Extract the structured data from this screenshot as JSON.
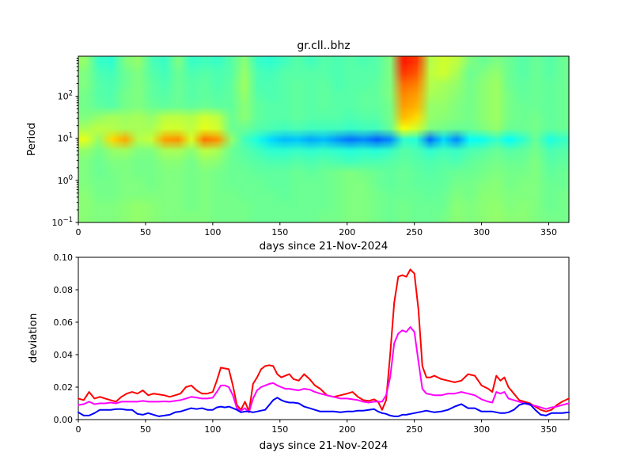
{
  "figure": {
    "title": "gr.cll..bhz",
    "background": "#ffffff"
  },
  "chart_data": [
    {
      "type": "heatmap",
      "name": "spectrogram",
      "title": "gr.cll..bhz",
      "xlabel": "days since 21-Nov-2024",
      "ylabel": "Period",
      "x_range": [
        0,
        365
      ],
      "xticks": [
        0,
        50,
        100,
        150,
        200,
        250,
        300,
        350
      ],
      "y_scale": "log",
      "y_range": [
        0.1,
        891
      ],
      "ytick_exponents": [
        -1,
        0,
        1,
        2
      ],
      "colormap": "jet",
      "value_range": [
        0,
        1
      ],
      "x_day_centers": [
        0,
        10,
        20,
        30,
        40,
        50,
        60,
        70,
        80,
        90,
        100,
        110,
        120,
        130,
        140,
        150,
        160,
        170,
        180,
        190,
        200,
        210,
        220,
        230,
        240,
        250,
        260,
        270,
        280,
        290,
        300,
        310,
        320,
        330,
        340,
        350,
        360
      ],
      "period_log10_centers": [
        -1.0,
        -0.73,
        -0.46,
        -0.19,
        0.08,
        0.35,
        0.62,
        0.89,
        1.16,
        1.43,
        1.7,
        1.97,
        2.24,
        2.51,
        2.78
      ],
      "values_rows_bottom_to_top": [
        [
          0.51,
          0.5,
          0.5,
          0.51,
          0.52,
          0.51,
          0.5,
          0.5,
          0.5,
          0.5,
          0.49,
          0.49,
          0.49,
          0.48,
          0.48,
          0.48,
          0.48,
          0.48,
          0.49,
          0.49,
          0.5,
          0.5,
          0.49,
          0.48,
          0.49,
          0.48,
          0.48,
          0.49,
          0.51,
          0.5,
          0.51,
          0.52,
          0.51,
          0.51,
          0.5,
          0.49,
          0.49
        ],
        [
          0.51,
          0.5,
          0.5,
          0.51,
          0.52,
          0.51,
          0.5,
          0.5,
          0.49,
          0.5,
          0.49,
          0.49,
          0.49,
          0.48,
          0.48,
          0.48,
          0.48,
          0.48,
          0.48,
          0.49,
          0.5,
          0.5,
          0.49,
          0.48,
          0.49,
          0.48,
          0.48,
          0.48,
          0.51,
          0.5,
          0.51,
          0.52,
          0.5,
          0.51,
          0.5,
          0.48,
          0.49
        ],
        [
          0.51,
          0.49,
          0.49,
          0.5,
          0.5,
          0.5,
          0.5,
          0.5,
          0.49,
          0.5,
          0.49,
          0.49,
          0.48,
          0.48,
          0.48,
          0.47,
          0.48,
          0.48,
          0.48,
          0.49,
          0.5,
          0.5,
          0.49,
          0.48,
          0.48,
          0.48,
          0.47,
          0.48,
          0.5,
          0.49,
          0.51,
          0.51,
          0.5,
          0.5,
          0.5,
          0.48,
          0.49
        ],
        [
          0.5,
          0.49,
          0.49,
          0.5,
          0.5,
          0.49,
          0.5,
          0.5,
          0.49,
          0.5,
          0.49,
          0.48,
          0.48,
          0.48,
          0.47,
          0.47,
          0.48,
          0.48,
          0.48,
          0.49,
          0.5,
          0.5,
          0.48,
          0.47,
          0.48,
          0.47,
          0.47,
          0.47,
          0.49,
          0.49,
          0.5,
          0.51,
          0.49,
          0.5,
          0.5,
          0.48,
          0.48
        ],
        [
          0.5,
          0.48,
          0.49,
          0.5,
          0.49,
          0.49,
          0.5,
          0.5,
          0.49,
          0.5,
          0.49,
          0.48,
          0.48,
          0.47,
          0.47,
          0.47,
          0.48,
          0.47,
          0.48,
          0.49,
          0.5,
          0.49,
          0.48,
          0.47,
          0.48,
          0.47,
          0.46,
          0.47,
          0.48,
          0.48,
          0.49,
          0.5,
          0.49,
          0.49,
          0.5,
          0.47,
          0.48
        ],
        [
          0.5,
          0.48,
          0.5,
          0.5,
          0.49,
          0.49,
          0.51,
          0.51,
          0.49,
          0.52,
          0.51,
          0.48,
          0.47,
          0.46,
          0.45,
          0.45,
          0.46,
          0.45,
          0.46,
          0.45,
          0.44,
          0.45,
          0.45,
          0.46,
          0.47,
          0.46,
          0.45,
          0.46,
          0.45,
          0.47,
          0.48,
          0.49,
          0.48,
          0.48,
          0.5,
          0.46,
          0.47
        ],
        [
          0.52,
          0.49,
          0.52,
          0.53,
          0.5,
          0.5,
          0.54,
          0.54,
          0.51,
          0.56,
          0.54,
          0.48,
          0.46,
          0.44,
          0.42,
          0.42,
          0.43,
          0.42,
          0.43,
          0.42,
          0.41,
          0.42,
          0.41,
          0.43,
          0.46,
          0.45,
          0.42,
          0.44,
          0.43,
          0.45,
          0.46,
          0.48,
          0.46,
          0.47,
          0.49,
          0.45,
          0.46
        ],
        [
          0.6,
          0.52,
          0.66,
          0.71,
          0.55,
          0.57,
          0.72,
          0.73,
          0.59,
          0.76,
          0.73,
          0.52,
          0.44,
          0.4,
          0.34,
          0.31,
          0.32,
          0.29,
          0.31,
          0.27,
          0.24,
          0.26,
          0.22,
          0.26,
          0.42,
          0.41,
          0.23,
          0.34,
          0.26,
          0.38,
          0.39,
          0.43,
          0.38,
          0.42,
          0.48,
          0.4,
          0.43
        ],
        [
          0.54,
          0.56,
          0.55,
          0.54,
          0.54,
          0.54,
          0.58,
          0.58,
          0.56,
          0.6,
          0.58,
          0.48,
          0.48,
          0.46,
          0.45,
          0.44,
          0.45,
          0.44,
          0.44,
          0.44,
          0.43,
          0.44,
          0.44,
          0.48,
          0.62,
          0.58,
          0.5,
          0.49,
          0.48,
          0.48,
          0.5,
          0.52,
          0.48,
          0.48,
          0.49,
          0.47,
          0.48
        ],
        [
          0.5,
          0.52,
          0.54,
          0.53,
          0.54,
          0.52,
          0.56,
          0.56,
          0.55,
          0.58,
          0.56,
          0.48,
          0.51,
          0.47,
          0.46,
          0.46,
          0.47,
          0.46,
          0.46,
          0.46,
          0.45,
          0.46,
          0.46,
          0.49,
          0.69,
          0.66,
          0.52,
          0.51,
          0.5,
          0.49,
          0.51,
          0.53,
          0.49,
          0.48,
          0.49,
          0.47,
          0.48
        ],
        [
          0.49,
          0.47,
          0.46,
          0.49,
          0.5,
          0.48,
          0.47,
          0.48,
          0.47,
          0.48,
          0.47,
          0.47,
          0.51,
          0.47,
          0.46,
          0.46,
          0.47,
          0.46,
          0.47,
          0.46,
          0.46,
          0.47,
          0.47,
          0.49,
          0.72,
          0.7,
          0.52,
          0.52,
          0.5,
          0.49,
          0.51,
          0.53,
          0.49,
          0.48,
          0.48,
          0.47,
          0.48
        ],
        [
          0.49,
          0.46,
          0.455,
          0.49,
          0.5,
          0.47,
          0.46,
          0.48,
          0.46,
          0.47,
          0.46,
          0.47,
          0.52,
          0.46,
          0.45,
          0.46,
          0.47,
          0.46,
          0.47,
          0.46,
          0.46,
          0.47,
          0.47,
          0.5,
          0.74,
          0.72,
          0.54,
          0.53,
          0.51,
          0.49,
          0.51,
          0.53,
          0.49,
          0.47,
          0.48,
          0.47,
          0.48
        ],
        [
          0.5,
          0.46,
          0.45,
          0.48,
          0.5,
          0.47,
          0.45,
          0.48,
          0.46,
          0.47,
          0.45,
          0.47,
          0.53,
          0.45,
          0.45,
          0.46,
          0.47,
          0.46,
          0.47,
          0.45,
          0.46,
          0.46,
          0.47,
          0.5,
          0.77,
          0.75,
          0.55,
          0.54,
          0.52,
          0.49,
          0.51,
          0.53,
          0.48,
          0.47,
          0.48,
          0.47,
          0.48
        ],
        [
          0.5,
          0.45,
          0.44,
          0.48,
          0.5,
          0.46,
          0.44,
          0.48,
          0.45,
          0.46,
          0.45,
          0.46,
          0.52,
          0.45,
          0.44,
          0.46,
          0.46,
          0.46,
          0.46,
          0.45,
          0.46,
          0.46,
          0.46,
          0.5,
          0.82,
          0.79,
          0.56,
          0.58,
          0.54,
          0.48,
          0.5,
          0.52,
          0.48,
          0.46,
          0.48,
          0.46,
          0.48
        ],
        [
          0.52,
          0.43,
          0.42,
          0.5,
          0.52,
          0.45,
          0.43,
          0.5,
          0.43,
          0.44,
          0.43,
          0.46,
          0.51,
          0.43,
          0.42,
          0.44,
          0.46,
          0.44,
          0.46,
          0.45,
          0.46,
          0.45,
          0.46,
          0.5,
          0.85,
          0.82,
          0.55,
          0.58,
          0.56,
          0.5,
          0.48,
          0.5,
          0.48,
          0.46,
          0.48,
          0.46,
          0.48
        ]
      ]
    },
    {
      "type": "line",
      "name": "deviation-curves",
      "xlabel": "days since 21-Nov-2024",
      "ylabel": "deviation",
      "x_range": [
        0,
        365
      ],
      "y_range": [
        0,
        0.1
      ],
      "xticks": [
        0,
        50,
        100,
        150,
        200,
        250,
        300,
        350
      ],
      "yticks": [
        0.0,
        0.02,
        0.04,
        0.06,
        0.08,
        0.1
      ],
      "x": [
        0,
        4,
        8,
        12,
        16,
        20,
        24,
        28,
        32,
        36,
        40,
        44,
        48,
        52,
        56,
        60,
        64,
        68,
        72,
        76,
        80,
        84,
        88,
        92,
        96,
        100,
        103,
        106,
        109,
        112,
        115,
        118,
        121,
        124,
        127,
        130,
        133,
        136,
        139,
        142,
        145,
        148,
        151,
        154,
        157,
        160,
        164,
        168,
        172,
        176,
        180,
        185,
        190,
        195,
        200,
        204,
        208,
        212,
        216,
        220,
        223,
        226,
        229,
        232,
        235,
        238,
        241,
        244,
        247,
        250,
        253,
        256,
        259,
        262,
        265,
        270,
        275,
        280,
        285,
        290,
        295,
        300,
        305,
        308,
        311,
        314,
        317,
        320,
        324,
        328,
        332,
        336,
        340,
        344,
        348,
        352,
        356,
        360,
        365
      ],
      "series": [
        {
          "name": "red",
          "color": "#ff0000",
          "values": [
            0.013,
            0.012,
            0.017,
            0.013,
            0.014,
            0.013,
            0.012,
            0.011,
            0.014,
            0.016,
            0.017,
            0.016,
            0.018,
            0.015,
            0.016,
            0.0155,
            0.015,
            0.014,
            0.015,
            0.016,
            0.02,
            0.021,
            0.018,
            0.016,
            0.016,
            0.017,
            0.024,
            0.032,
            0.0315,
            0.031,
            0.021,
            0.009,
            0.006,
            0.011,
            0.005,
            0.022,
            0.026,
            0.031,
            0.033,
            0.0335,
            0.033,
            0.028,
            0.026,
            0.027,
            0.028,
            0.025,
            0.024,
            0.028,
            0.025,
            0.021,
            0.019,
            0.015,
            0.014,
            0.015,
            0.016,
            0.017,
            0.014,
            0.012,
            0.0115,
            0.0125,
            0.011,
            0.006,
            0.012,
            0.04,
            0.072,
            0.088,
            0.089,
            0.088,
            0.0925,
            0.09,
            0.068,
            0.033,
            0.026,
            0.026,
            0.027,
            0.025,
            0.024,
            0.023,
            0.024,
            0.028,
            0.027,
            0.021,
            0.019,
            0.017,
            0.027,
            0.024,
            0.026,
            0.02,
            0.016,
            0.012,
            0.011,
            0.01,
            0.008,
            0.006,
            0.005,
            0.006,
            0.009,
            0.011,
            0.013
          ]
        },
        {
          "name": "magenta",
          "color": "#ff00ff",
          "values": [
            0.009,
            0.0095,
            0.011,
            0.0095,
            0.01,
            0.01,
            0.0105,
            0.01,
            0.011,
            0.011,
            0.011,
            0.011,
            0.0115,
            0.011,
            0.011,
            0.011,
            0.0112,
            0.011,
            0.0115,
            0.012,
            0.013,
            0.014,
            0.0135,
            0.013,
            0.013,
            0.0135,
            0.017,
            0.021,
            0.021,
            0.02,
            0.015,
            0.007,
            0.0055,
            0.007,
            0.0045,
            0.013,
            0.018,
            0.02,
            0.021,
            0.022,
            0.0225,
            0.021,
            0.02,
            0.019,
            0.019,
            0.0185,
            0.018,
            0.019,
            0.0185,
            0.017,
            0.016,
            0.015,
            0.014,
            0.013,
            0.013,
            0.0125,
            0.012,
            0.011,
            0.0105,
            0.011,
            0.011,
            0.011,
            0.015,
            0.026,
            0.047,
            0.053,
            0.055,
            0.054,
            0.057,
            0.054,
            0.036,
            0.019,
            0.016,
            0.0155,
            0.015,
            0.015,
            0.016,
            0.016,
            0.017,
            0.016,
            0.015,
            0.0125,
            0.011,
            0.0105,
            0.017,
            0.016,
            0.017,
            0.013,
            0.012,
            0.011,
            0.01,
            0.009,
            0.0085,
            0.0075,
            0.0065,
            0.0075,
            0.008,
            0.009,
            0.01
          ]
        },
        {
          "name": "blue",
          "color": "#0000ff",
          "values": [
            0.0045,
            0.0025,
            0.0025,
            0.004,
            0.006,
            0.006,
            0.006,
            0.0065,
            0.0065,
            0.006,
            0.006,
            0.0035,
            0.003,
            0.004,
            0.003,
            0.002,
            0.0025,
            0.003,
            0.0045,
            0.005,
            0.006,
            0.007,
            0.0065,
            0.007,
            0.006,
            0.006,
            0.0075,
            0.008,
            0.0075,
            0.008,
            0.007,
            0.006,
            0.0045,
            0.005,
            0.005,
            0.0045,
            0.005,
            0.0055,
            0.006,
            0.009,
            0.012,
            0.0135,
            0.012,
            0.011,
            0.0105,
            0.0105,
            0.01,
            0.008,
            0.007,
            0.006,
            0.005,
            0.005,
            0.005,
            0.0045,
            0.005,
            0.005,
            0.0055,
            0.0055,
            0.006,
            0.0065,
            0.005,
            0.004,
            0.0035,
            0.0025,
            0.002,
            0.002,
            0.003,
            0.003,
            0.0035,
            0.004,
            0.0045,
            0.005,
            0.0055,
            0.005,
            0.0045,
            0.005,
            0.006,
            0.008,
            0.0095,
            0.007,
            0.007,
            0.005,
            0.005,
            0.005,
            0.0045,
            0.004,
            0.004,
            0.0045,
            0.006,
            0.009,
            0.01,
            0.0095,
            0.006,
            0.003,
            0.0025,
            0.004,
            0.004,
            0.004,
            0.0045
          ]
        }
      ]
    }
  ]
}
